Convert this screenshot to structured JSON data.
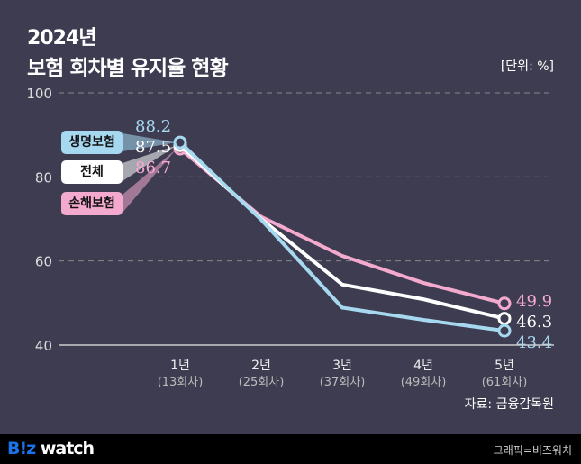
{
  "header": {
    "year": "2024년",
    "title": "보험 회차별 유지율 현황",
    "unit": "[단위: %]"
  },
  "source": "자료: 금융감독원",
  "footer": {
    "logo_a": "B!z",
    "logo_b": " watch",
    "credit": "그래픽=비즈워치"
  },
  "colors": {
    "life": "#a6d8f0",
    "total": "#ffffff",
    "nonlife": "#f4a9cf"
  },
  "chart_data": {
    "type": "line",
    "title": "보험 회차별 유지율 현황",
    "ylabel": "%",
    "ylim": [
      40,
      100
    ],
    "yticks": [
      40,
      60,
      80,
      100
    ],
    "grid": true,
    "categories": [
      "1년",
      "2년",
      "3년",
      "4년",
      "5년"
    ],
    "category_sub": [
      "(13회차)",
      "(25회차)",
      "(37회차)",
      "(49회차)",
      "(61회차)"
    ],
    "series": [
      {
        "name": "생명보험",
        "key": "life",
        "values": [
          88.2,
          69.8,
          48.9,
          46.0,
          43.4
        ],
        "start_label": "88.2",
        "end_label": "43.4"
      },
      {
        "name": "전체",
        "key": "total",
        "values": [
          87.5,
          70.0,
          54.4,
          50.9,
          46.3
        ],
        "start_label": "87.5",
        "end_label": "46.3"
      },
      {
        "name": "손해보험",
        "key": "nonlife",
        "values": [
          86.7,
          70.5,
          61.2,
          54.8,
          49.9
        ],
        "start_label": "86.7",
        "end_label": "49.9"
      }
    ]
  }
}
